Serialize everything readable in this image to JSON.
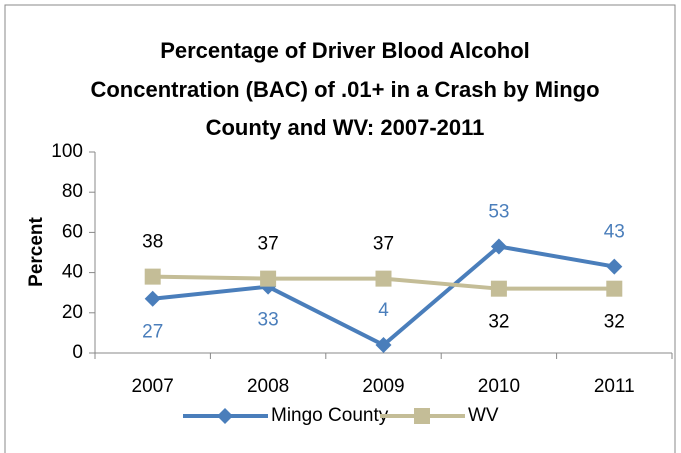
{
  "chart_data": {
    "type": "line",
    "title": [
      "Percentage of Driver Blood Alcohol",
      "Concentration (BAC) of .01+ in a Crash by Mingo",
      "County and WV: 2007-2011"
    ],
    "y_label": "Percent",
    "categories": [
      "2007",
      "2008",
      "2009",
      "2010",
      "2011"
    ],
    "series": [
      {
        "name": "Mingo County",
        "color": "#4a7ebb",
        "marker": "diamond",
        "values": [
          27,
          33,
          4,
          53,
          43
        ]
      },
      {
        "name": "WV",
        "color": "#c4bd97",
        "marker": "square",
        "values": [
          38,
          37,
          37,
          32,
          32
        ]
      }
    ],
    "ylim": [
      0,
      100
    ],
    "yticks": [
      0,
      20,
      40,
      60,
      80,
      100
    ],
    "grid": false,
    "legend": "bottom"
  }
}
